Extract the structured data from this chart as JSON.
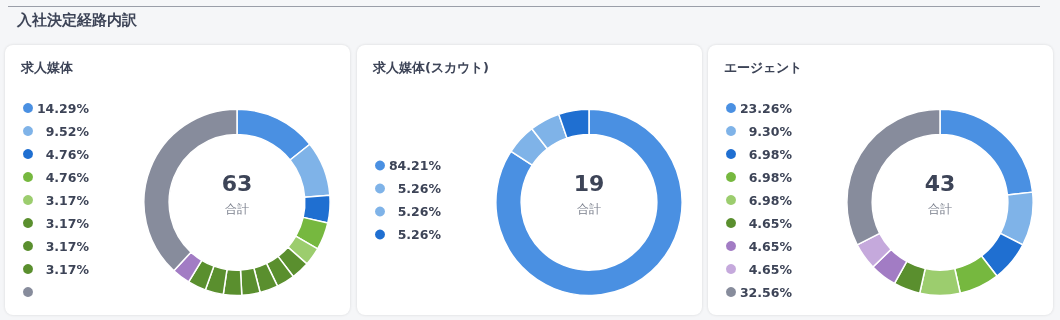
{
  "chart_data": [
    {
      "type": "donut",
      "title": "求人媒体",
      "annotations": [
        "入社決定経路内訳",
        "63",
        "合計"
      ],
      "legend": "left",
      "categories": [
        "14.29%",
        "9.52%",
        "4.76%",
        "4.76%",
        "3.17%",
        "3.17%",
        "3.17%",
        "3.17%",
        null,
        null,
        null,
        null,
        null,
        null
      ],
      "values": [
        14.29,
        9.52,
        4.76,
        4.76,
        3.17,
        3.17,
        3.17,
        3.17,
        3.17,
        3.17,
        3.17,
        3.17,
        3.17,
        38.14
      ],
      "colors": [
        "#4a90e2",
        "#7fb3e8",
        "#1f6fd1",
        "#76b83f",
        "#9ccd6e",
        "#5a8f2e",
        "#5a8f2e",
        "#5a8f2e",
        "#5a8f2e",
        "#5a8f2e",
        "#5a8f2e",
        "#5a8f2e",
        "#a27cc4",
        "#878c9c"
      ]
    },
    {
      "type": "donut",
      "title": "求人媒体(スカウト)",
      "annotations": [
        "19",
        "合計"
      ],
      "legend": "left",
      "categories": [
        "84.21%",
        "5.26%",
        "5.26%",
        "5.26%"
      ],
      "values": [
        84.21,
        5.26,
        5.26,
        5.26
      ],
      "colors": [
        "#4a90e2",
        "#7fb3e8",
        "#7fb3e8",
        "#1f6fd1"
      ]
    },
    {
      "type": "donut",
      "title": "エージェント",
      "annotations": [
        "43",
        "合計"
      ],
      "legend": "left",
      "categories": [
        "23.26%",
        "9.30%",
        "6.98%",
        "6.98%",
        "6.98%",
        "4.65%",
        "4.65%",
        "4.65%",
        "32.56%"
      ],
      "values": [
        23.26,
        9.3,
        6.98,
        6.98,
        6.98,
        4.65,
        4.65,
        4.65,
        32.56
      ],
      "colors": [
        "#4a90e2",
        "#7fb3e8",
        "#1f6fd1",
        "#76b83f",
        "#9ccd6e",
        "#5a8f2e",
        "#a27cc4",
        "#c5a9dc",
        "#878c9c"
      ]
    }
  ]
}
